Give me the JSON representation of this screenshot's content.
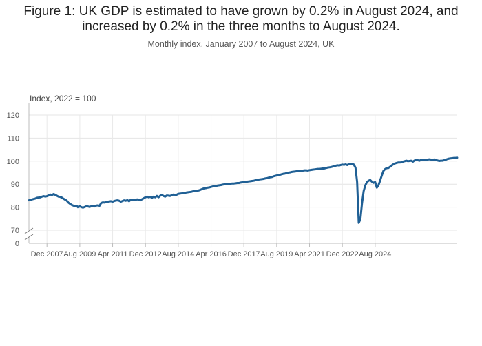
{
  "chart_data": {
    "type": "line",
    "title_line1": "Figure 1: UK GDP is estimated to have grown by 0.2% in August 2024, and",
    "title_line2": "increased by 0.2% in the three months to August 2024.",
    "subtitle": "Monthly index, January 2007 to August 2024, UK",
    "ylabel": "Index, 2022 = 100",
    "yticks": [
      0,
      70,
      80,
      90,
      100,
      110,
      120
    ],
    "ylim": [
      70,
      120
    ],
    "axis_break": true,
    "xticks": [
      "Dec 2007",
      "Aug 2009",
      "Apr 2011",
      "Dec 2012",
      "Aug 2014",
      "Apr 2016",
      "Dec 2017",
      "Aug 2019",
      "Apr 2021",
      "Dec 2022",
      "Aug 2024"
    ],
    "grid": true,
    "line_color": "#206095",
    "series": [
      {
        "x_start": "2007-01",
        "x_end": "2024-08",
        "values": [
          83.0,
          83.2,
          83.4,
          83.6,
          83.8,
          84.1,
          84.2,
          84.3,
          84.6,
          84.8,
          84.6,
          84.8,
          85.1,
          85.5,
          85.3,
          85.7,
          85.4,
          85.0,
          84.6,
          84.5,
          84.2,
          83.7,
          83.3,
          82.9,
          82.0,
          81.5,
          81.0,
          80.7,
          80.5,
          80.6,
          79.9,
          80.4,
          80.0,
          79.8,
          80.1,
          80.4,
          80.3,
          80.1,
          80.4,
          80.5,
          80.3,
          80.7,
          80.8,
          80.6,
          81.8,
          82.1,
          82.0,
          82.2,
          82.4,
          82.5,
          82.6,
          82.4,
          82.7,
          82.9,
          83.0,
          82.8,
          82.4,
          82.7,
          83.0,
          82.8,
          83.1,
          82.6,
          83.2,
          83.3,
          83.1,
          83.2,
          83.4,
          83.3,
          83.0,
          83.5,
          83.9,
          84.3,
          84.6,
          84.3,
          84.5,
          84.1,
          84.6,
          84.3,
          84.9,
          84.3,
          85.0,
          85.3,
          84.9,
          84.6,
          85.1,
          85.0,
          84.9,
          85.2,
          85.5,
          85.4,
          85.4,
          85.8,
          85.9,
          86.0,
          86.1,
          86.2,
          86.4,
          86.5,
          86.6,
          86.7,
          86.9,
          87.0,
          86.9,
          87.2,
          87.4,
          87.7,
          88.0,
          88.2,
          88.3,
          88.5,
          88.6,
          88.8,
          89.0,
          89.2,
          89.2,
          89.4,
          89.5,
          89.6,
          89.8,
          89.9,
          89.9,
          90.0,
          90.0,
          90.2,
          90.3,
          90.3,
          90.4,
          90.5,
          90.5,
          90.7,
          90.8,
          90.9,
          91.0,
          91.1,
          91.2,
          91.3,
          91.4,
          91.5,
          91.7,
          91.8,
          92.0,
          92.1,
          92.2,
          92.3,
          92.5,
          92.6,
          92.8,
          93.0,
          93.1,
          93.4,
          93.6,
          93.8,
          94.0,
          94.1,
          94.3,
          94.5,
          94.6,
          94.8,
          95.0,
          95.1,
          95.3,
          95.4,
          95.5,
          95.6,
          95.8,
          95.8,
          95.9,
          95.9,
          96.0,
          96.0,
          95.9,
          96.1,
          96.2,
          96.3,
          96.4,
          96.5,
          96.6,
          96.6,
          96.7,
          96.8,
          96.8,
          97.0,
          97.2,
          97.3,
          97.4,
          97.6,
          97.8,
          98.0,
          98.2,
          98.1,
          98.3,
          98.5,
          98.4,
          98.6,
          98.3,
          98.7,
          98.6,
          98.8,
          98.5,
          97.2,
          91.0,
          73.2,
          74.8,
          81.8,
          87.0,
          89.5,
          90.9,
          91.5,
          91.8,
          91.1,
          90.6,
          90.9,
          88.5,
          89.5,
          91.5,
          93.7,
          95.7,
          96.5,
          97.0,
          97.0,
          97.5,
          98.1,
          98.6,
          99.0,
          99.2,
          99.4,
          99.4,
          99.5,
          99.8,
          100.0,
          100.2,
          100.0,
          100.1,
          100.2,
          99.8,
          100.3,
          100.5,
          100.4,
          100.2,
          100.6,
          100.5,
          100.4,
          100.5,
          100.7,
          100.8,
          100.7,
          100.4,
          100.8,
          100.5,
          100.3,
          100.1,
          100.2,
          100.2,
          100.4,
          100.6,
          100.9,
          101.1,
          101.2,
          101.3,
          101.4,
          101.4,
          101.5
        ]
      }
    ]
  }
}
